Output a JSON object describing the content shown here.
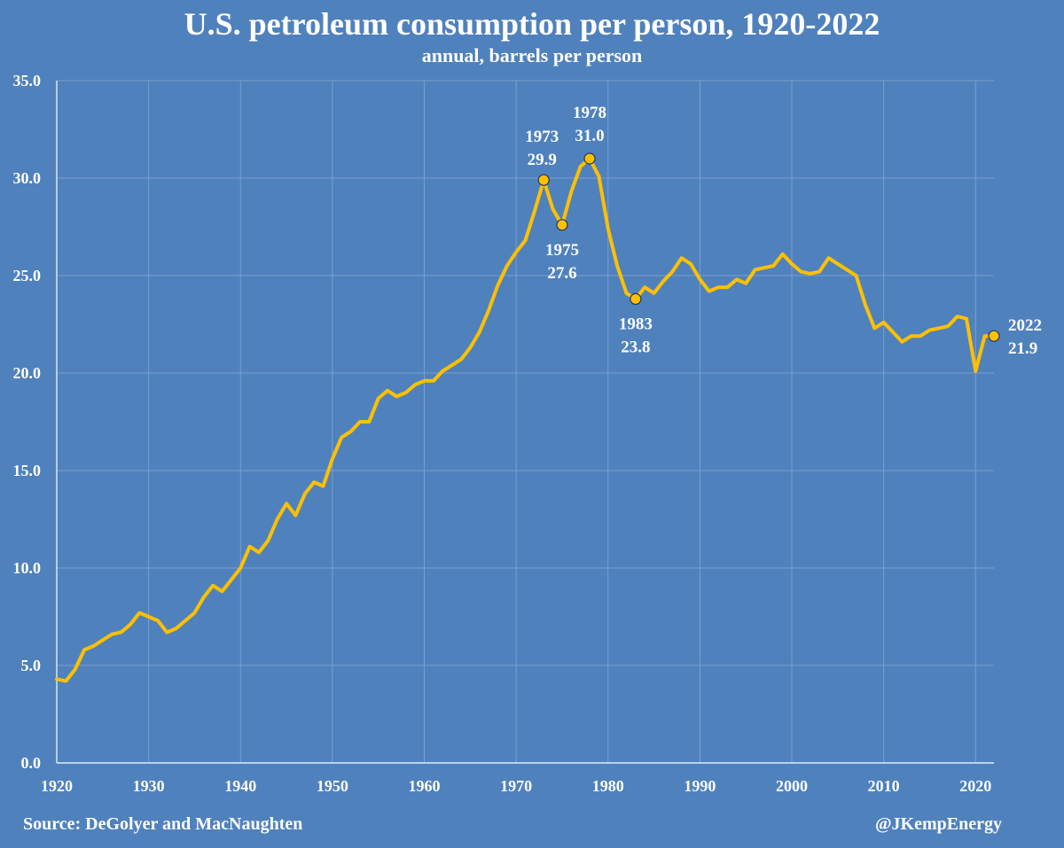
{
  "header": {
    "title": "U.S. petroleum consumption per person, 1920-2022",
    "subtitle": "annual, barrels per person"
  },
  "footer": {
    "source": "Source: DeGolyer and MacNaughten",
    "handle": "@JKempEnergy"
  },
  "colors": {
    "background": "#4f81bd",
    "line": "#ffc000",
    "grid": "#7b9fd0"
  },
  "chart_data": {
    "type": "line",
    "title": "U.S. petroleum consumption per person, 1920-2022",
    "subtitle": "annual, barrels per person",
    "xlabel": "",
    "ylabel": "",
    "xlim": [
      1920,
      2022
    ],
    "ylim": [
      0,
      35
    ],
    "x_ticks": [
      1920,
      1930,
      1940,
      1950,
      1960,
      1970,
      1980,
      1990,
      2000,
      2010,
      2020
    ],
    "y_ticks": [
      "0.0",
      "5.0",
      "10.0",
      "15.0",
      "20.0",
      "25.0",
      "30.0",
      "35.0"
    ],
    "grid": "vertical and horizontal",
    "series": [
      {
        "x": [
          1920,
          1921,
          1922,
          1923,
          1924,
          1925,
          1926,
          1927,
          1928,
          1929,
          1930,
          1931,
          1932,
          1933,
          1934,
          1935,
          1936,
          1937,
          1938,
          1939,
          1940,
          1941,
          1942,
          1943,
          1944,
          1945,
          1946,
          1947,
          1948,
          1949,
          1950,
          1951,
          1952,
          1953,
          1954,
          1955,
          1956,
          1957,
          1958,
          1959,
          1960,
          1961,
          1962,
          1963,
          1964,
          1965,
          1966,
          1967,
          1968,
          1969,
          1970,
          1971,
          1972,
          1973,
          1974,
          1975,
          1976,
          1977,
          1978,
          1979,
          1980,
          1981,
          1982,
          1983,
          1984,
          1985,
          1986,
          1987,
          1988,
          1989,
          1990,
          1991,
          1992,
          1993,
          1994,
          1995,
          1996,
          1997,
          1998,
          1999,
          2000,
          2001,
          2002,
          2003,
          2004,
          2005,
          2006,
          2007,
          2008,
          2009,
          2010,
          2011,
          2012,
          2013,
          2014,
          2015,
          2016,
          2017,
          2018,
          2019,
          2020,
          2021,
          2022
        ],
        "values": [
          4.3,
          4.2,
          4.8,
          5.8,
          6.0,
          6.3,
          6.6,
          6.7,
          7.1,
          7.7,
          7.5,
          7.3,
          6.7,
          6.9,
          7.3,
          7.7,
          8.5,
          9.1,
          8.8,
          9.4,
          10.0,
          11.1,
          10.8,
          11.4,
          12.5,
          13.3,
          12.7,
          13.8,
          14.4,
          14.2,
          15.6,
          16.7,
          17.0,
          17.5,
          17.5,
          18.7,
          19.1,
          18.8,
          19.0,
          19.4,
          19.6,
          19.6,
          20.1,
          20.4,
          20.7,
          21.3,
          22.1,
          23.2,
          24.5,
          25.5,
          26.2,
          26.8,
          28.3,
          29.9,
          28.4,
          27.6,
          29.3,
          30.6,
          31.0,
          30.1,
          27.4,
          25.5,
          24.1,
          23.8,
          24.4,
          24.1,
          24.7,
          25.2,
          25.9,
          25.6,
          24.8,
          24.2,
          24.4,
          24.4,
          24.8,
          24.6,
          25.3,
          25.4,
          25.5,
          26.1,
          25.6,
          25.2,
          25.1,
          25.2,
          25.9,
          25.6,
          25.3,
          25.0,
          23.5,
          22.3,
          22.6,
          22.1,
          21.6,
          21.9,
          21.9,
          22.2,
          22.3,
          22.4,
          22.9,
          22.8,
          20.1,
          21.9,
          21.9
        ]
      }
    ],
    "annotations": [
      {
        "year": 1973,
        "value": 29.9,
        "year_label": "1973",
        "value_label": "29.9",
        "position": "above-left"
      },
      {
        "year": 1975,
        "value": 27.6,
        "year_label": "1975",
        "value_label": "27.6",
        "position": "below"
      },
      {
        "year": 1978,
        "value": 31.0,
        "year_label": "1978",
        "value_label": "31.0",
        "position": "above"
      },
      {
        "year": 1983,
        "value": 23.8,
        "year_label": "1983",
        "value_label": "23.8",
        "position": "below"
      },
      {
        "year": 2022,
        "value": 21.9,
        "year_label": "2022",
        "value_label": "21.9",
        "position": "right"
      }
    ]
  }
}
